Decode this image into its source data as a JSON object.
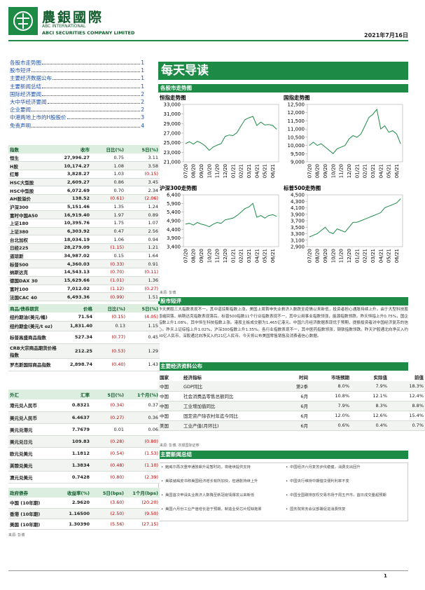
{
  "header": {
    "brand": "農銀國際",
    "en1": "ABC INTERNATIONAL",
    "en2": "ABCI SECURITIES COMPANY LIMITED",
    "date": "2021年7月16日"
  },
  "toc": [
    {
      "label": "各股市走势图",
      "page": "1"
    },
    {
      "label": "股市短评",
      "page": "1"
    },
    {
      "label": "主要经济数据公布",
      "page": "1"
    },
    {
      "label": "主要新闻总结",
      "page": "1"
    },
    {
      "label": "国际经济要闻",
      "page": "2"
    },
    {
      "label": "大中华经济要闻",
      "page": "2"
    },
    {
      "label": "企业要闻",
      "page": "2"
    },
    {
      "label": "中港两地上市的H股股价",
      "page": "3"
    },
    {
      "label": "免责声明",
      "page": "4"
    }
  ],
  "tables": {
    "indices": {
      "header": [
        "指数",
        "收市",
        "日比(%)",
        "5日(%)"
      ],
      "rows": [
        [
          "恒生",
          "27,996.27",
          "0.75",
          "3.11"
        ],
        [
          "H股",
          "10,174.27",
          "1.08",
          "3.58"
        ],
        [
          "红筹",
          "3,828.27",
          "1.03",
          "(0.15)"
        ],
        [
          "HSC大型股",
          "2,609.27",
          "0.86",
          "3.45"
        ],
        [
          "HSC中型股",
          "6,072.69",
          "0.70",
          "2.34"
        ],
        [
          "AH股溢价",
          "138.52",
          "(0.61)",
          "(2.06)"
        ],
        [
          "沪深300",
          "5,151.46",
          "1.35",
          "1.24"
        ],
        [
          "富时中国A50",
          "16,919.40",
          "1.97",
          "0.89"
        ],
        [
          "上证180",
          "10,395.76",
          "1.75",
          "1.07"
        ],
        [
          "上证380",
          "6,303.92",
          "0.47",
          "2.56"
        ],
        [
          "台北加权",
          "18,034.19",
          "1.06",
          "0.94"
        ],
        [
          "日经225",
          "28,279.09",
          "(1.15)",
          "1.21"
        ],
        [
          "道琼斯",
          "34,987.02",
          "0.15",
          "1.64"
        ],
        [
          "标普500",
          "4,360.03",
          "(0.33)",
          "0.91"
        ],
        [
          "纳斯达克",
          "14,543.13",
          "(0.70)",
          "(0.11)"
        ],
        [
          "德国DAX 30",
          "15,629.66",
          "(1.01)",
          "1.36"
        ],
        [
          "富时100",
          "7,012.02",
          "(1.12)",
          "(0.27)"
        ],
        [
          "法国CAC 40",
          "6,493.36",
          "(0.99)",
          "1.51"
        ]
      ]
    },
    "commodities": {
      "header": [
        "商品/债券期货",
        "价格",
        "日比(%)",
        "5日(%)"
      ],
      "rows": [
        [
          "纽约期油(美元/桶)",
          "71.54",
          "(0.15)",
          "(4.05)"
        ],
        [
          "纽约期金(美元/t oz)",
          "1,831.40",
          "0.13",
          "1.15"
        ],
        [
          "标普高盛商品指数",
          "527.34",
          "(0.77)",
          "0.45"
        ],
        [
          "CRB大宗商品期货价格指数",
          "212.25",
          "(0.53)",
          "1.29"
        ],
        [
          "罗杰斯国际商品指数",
          "2,898.74",
          "(0.40)",
          "1.43"
        ]
      ]
    },
    "fx": {
      "header": [
        "外汇",
        "汇率",
        "5日(%)",
        "1个月(%)"
      ],
      "rows": [
        [
          "港元兑人民币",
          "0.8321",
          "(0.34)",
          "0.37"
        ],
        [
          "美元兑人民币",
          "6.4637",
          "(0.27)",
          "0.36"
        ],
        [
          "美元兑港元",
          "7.7679",
          "0.01",
          "0.06"
        ],
        [
          "美元兑日元",
          "109.83",
          "(0.28)",
          "(0.80)"
        ],
        [
          "欧元兑美元",
          "1.1812",
          "(0.54)",
          "(1.53)"
        ],
        [
          "英镑兑美元",
          "1.3834",
          "(0.48)",
          "(1.10)"
        ],
        [
          "澳元兑美元",
          "0.7428",
          "(0.80)",
          "(2.39)"
        ]
      ]
    },
    "bonds": {
      "header": [
        "政府债券",
        "收益率(%)",
        "5日(bps)",
        "1个月(bps)"
      ],
      "rows": [
        [
          "中国 (10年期)",
          "2.9620",
          "(3.60)",
          "(20.20)"
        ],
        [
          "香港 (10年期)",
          "1.16500",
          "(2.50)",
          "(9.50)"
        ],
        [
          "美国 (10年期)",
          "1.30390",
          "(5.56)",
          "(27.15)"
        ]
      ]
    },
    "source": "来源: 彭博"
  },
  "banner": "每天导读",
  "charts_section": {
    "title": "各股市走势图",
    "source": "来源: 彭博"
  },
  "chart_data": [
    {
      "type": "line",
      "title": "恒指走势图",
      "color": "#1d8a46",
      "categories": [
        "07/20",
        null,
        "08/20",
        null,
        "09/20",
        null,
        "10/20",
        null,
        "11/20",
        null,
        "12/20",
        null,
        "01/21",
        null,
        "02/21",
        null,
        "03/21",
        null,
        "04/21",
        null,
        "05/21",
        null,
        "06/21",
        null
      ],
      "values": [
        24800,
        25200,
        24700,
        25300,
        24900,
        24300,
        23400,
        24100,
        24500,
        24800,
        26300,
        26600,
        26500,
        27100,
        28500,
        29800,
        30200,
        30500,
        28600,
        29300,
        28700,
        28800,
        28600,
        27800
      ],
      "ylim": [
        21000,
        33000
      ],
      "yticks": [
        {
          "value": 21000,
          "label": "21,000"
        },
        {
          "value": 23000,
          "label": "23,000"
        },
        {
          "value": 25000,
          "label": "25,000"
        },
        {
          "value": 27000,
          "label": "27,000"
        },
        {
          "value": 29000,
          "label": "29,000"
        },
        {
          "value": 31000,
          "label": "31,000"
        },
        {
          "value": 33000,
          "label": "33,000"
        }
      ]
    },
    {
      "type": "line",
      "title": "国指走势图",
      "color": "#1d8a46",
      "categories": [
        "07/20",
        null,
        "08/20",
        null,
        "09/20",
        null,
        "10/20",
        null,
        "11/20",
        null,
        "12/20",
        null,
        "01/21",
        null,
        "02/21",
        null,
        "03/21",
        null,
        "04/21",
        null,
        "05/21",
        null,
        "06/21",
        null
      ],
      "values": [
        10000,
        10200,
        10000,
        10100,
        9900,
        9700,
        9500,
        9800,
        9900,
        10000,
        10400,
        10600,
        10500,
        10700,
        11200,
        11700,
        11900,
        12200,
        11000,
        11200,
        10800,
        10900,
        10700,
        10100
      ],
      "ylim": [
        9000,
        12500
      ],
      "yticks": [
        {
          "value": 9000,
          "label": "9,000"
        },
        {
          "value": 9500,
          "label": "9,500"
        },
        {
          "value": 10000,
          "label": "10,000"
        },
        {
          "value": 10500,
          "label": "10,500"
        },
        {
          "value": 11000,
          "label": "11,000"
        },
        {
          "value": 11500,
          "label": "11,500"
        },
        {
          "value": 12000,
          "label": "12,000"
        },
        {
          "value": 12500,
          "label": "12,500"
        }
      ]
    },
    {
      "type": "line",
      "title": "沪深300走势图",
      "color": "#1d8a46",
      "categories": [
        "07/20",
        null,
        "08/20",
        null,
        "09/20",
        null,
        "10/20",
        null,
        "11/20",
        null,
        "12/20",
        null,
        "01/21",
        null,
        "02/21",
        null,
        "03/21",
        null,
        "04/21",
        null,
        "05/21",
        null,
        "06/21",
        null
      ],
      "values": [
        4700,
        4750,
        4650,
        4800,
        4700,
        4650,
        4550,
        4700,
        4800,
        4750,
        4950,
        5000,
        5050,
        5200,
        5400,
        5600,
        5700,
        5900,
        5100,
        5200,
        5050,
        5200,
        5250,
        5150
      ],
      "ylim": [
        3400,
        6400
      ],
      "yticks": [
        {
          "value": 3400,
          "label": "3,400"
        },
        {
          "value": 3900,
          "label": "3,900"
        },
        {
          "value": 4400,
          "label": "4,400"
        },
        {
          "value": 4900,
          "label": "4,900"
        },
        {
          "value": 5400,
          "label": "5,400"
        },
        {
          "value": 5900,
          "label": "5,900"
        },
        {
          "value": 6400,
          "label": "6,400"
        }
      ]
    },
    {
      "type": "line",
      "title": "标普500走势图",
      "color": "#1d8a46",
      "categories": [
        "07/20",
        null,
        "08/20",
        null,
        "09/20",
        null,
        "10/20",
        null,
        "11/20",
        null,
        "12/20",
        null,
        "01/21",
        null,
        "02/21",
        null,
        "03/21",
        null,
        "04/21",
        null,
        "05/21",
        null,
        "06/21",
        null
      ],
      "values": [
        3200,
        3250,
        3300,
        3400,
        3500,
        3350,
        3300,
        3450,
        3400,
        3350,
        3500,
        3650,
        3650,
        3700,
        3750,
        3800,
        3850,
        3900,
        3950,
        4100,
        4150,
        4200,
        4250,
        4380
      ],
      "ylim": [
        2900,
        4500
      ],
      "yticks": [
        {
          "value": 2900,
          "label": "2,900"
        },
        {
          "value": 3100,
          "label": "3,100"
        },
        {
          "value": 3300,
          "label": "3,300"
        },
        {
          "value": 3500,
          "label": "3,500"
        },
        {
          "value": 3700,
          "label": "3,700"
        },
        {
          "value": 3900,
          "label": "3,900"
        },
        {
          "value": 4100,
          "label": "4,100"
        },
        {
          "value": 4300,
          "label": "4,300"
        },
        {
          "value": 4500,
          "label": "4,500"
        }
      ]
    }
  ],
  "commentary": {
    "title": "股市短评",
    "text": "昨天美股三大指数表现不一，其中道琼斯指数上涨。美国上周首申失业救济人数跌至疫情以来新低，投资者担心通胀持续上升。由于大型科技股普遍回落，纳斯达克指数表现落后。标普500指数11个行业指数表现不一，其中公用事业指数领涨，能源指数领跌。昨天恒指上升0.75%，国企指数上升1.08%，其中恒生科技指数上涨。港股主板成交额为1,465亿港元。中国六月经济数据表现优于预期，提振投资者对中国经济复苏的信心。昨天上证综指上升1.02%，沪深300指数上升1.35%。各行业指数表现不一，其中医药指数领涨，钢铁指数领跌。昨天沪股通北向净买入约40亿人民币，深股通北向净买入约21亿人民币。今天将公布美国零售销售及消费者信心数据。"
  },
  "economic": {
    "title": "主要经济资料公布",
    "header": [
      "国家",
      "经济指标",
      "时间",
      "市场预期",
      "实际值",
      "前值"
    ],
    "rows": [
      [
        "中国",
        "GDP同比",
        "第2季",
        "8.0%",
        "7.9%",
        "18.3%"
      ],
      [
        "中国",
        "社会消费品零售总额同比",
        "6月",
        "10.8%",
        "12.1%",
        "12.4%"
      ],
      [
        "中国",
        "工业增加值同比",
        "6月",
        "7.9%",
        "8.3%",
        "8.8%"
      ],
      [
        "中国",
        "固定资产除农村年迄今同比",
        "6月",
        "12.0%",
        "12.6%",
        "15.4%"
      ],
      [
        "美国",
        "工业产值(月环比)",
        "6月",
        "0.6%",
        "0.4%",
        "0.7%"
      ]
    ],
    "source": "来源: 彭博, 农银国际证券"
  },
  "news": {
    "title": "主要新闻总结",
    "left": [
      "鲍威尔再次重申通胀飙升是暂时的，将继续提供支持",
      "美联储褐皮书称美国经济增长有所加快，但通胀持续上升",
      "美国首次申请失业救济人数降至新冠疫情爆发以来新低",
      "美国六月份工业产值增长逊于预期，制造业受芯片短缺拖累"
    ],
    "right": [
      "中国经济六月复苏步伐稳健，消费支出回升",
      "中国央行维持中期借贷便利利率不变",
      "中国全国碳排放权交易市场于周五开市，首日成交量超预期",
      "国务院常务会议部署促进消费恢复"
    ]
  },
  "footer": {
    "page": "1"
  }
}
